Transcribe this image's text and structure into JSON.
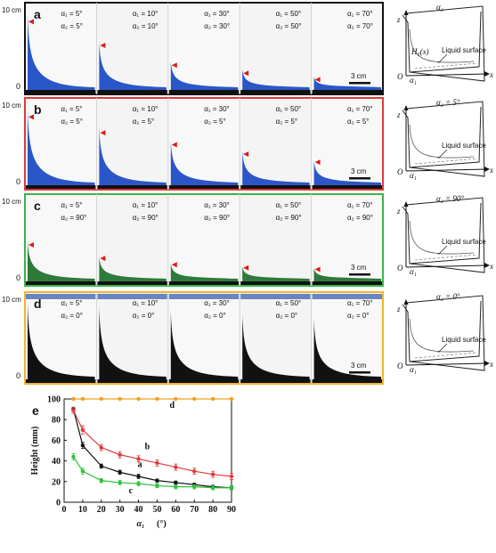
{
  "rows": [
    {
      "label": "a",
      "frame_color": "#111111",
      "top_scale": "10 cm",
      "zero": "0",
      "scale_bar": "3 cm",
      "fluid_color": "#2a56c8",
      "has_markers": true,
      "panels": [
        {
          "a1": "α₁ = 5°",
          "a2": "α₂ = 5°",
          "marker": 0.85,
          "rise": 0.95
        },
        {
          "a1": "α₁ = 10°",
          "a2": "α₂ = 10°",
          "marker": 0.55,
          "rise": 0.6
        },
        {
          "a1": "α₁ = 30°",
          "a2": "α₂ = 30°",
          "marker": 0.3,
          "rise": 0.35
        },
        {
          "a1": "α₁ = 50°",
          "a2": "α₂ = 50°",
          "marker": 0.2,
          "rise": 0.25
        },
        {
          "a1": "α₁ = 70°",
          "a2": "α₂ = 70°",
          "marker": 0.12,
          "rise": 0.16
        }
      ],
      "schematic": {
        "alpha2_label": "α₂",
        "extra_label": "H₀(x)",
        "surface_label": "Liquid surface",
        "alpha1_label": "α₁",
        "z": "z",
        "x": "x",
        "o": "O"
      }
    },
    {
      "label": "b",
      "frame_color": "#e03a3a",
      "top_scale": "10 cm",
      "zero": "0",
      "scale_bar": "3 cm",
      "fluid_color": "#2a56c8",
      "has_markers": true,
      "panels": [
        {
          "a1": "α₁ = 5°",
          "a2": "α₂ = 5°",
          "marker": 0.85,
          "rise": 0.95
        },
        {
          "a1": "α₁ = 10°",
          "a2": "α₂ = 5°",
          "marker": 0.65,
          "rise": 0.72
        },
        {
          "a1": "α₁ = 30°",
          "a2": "α₂ = 5°",
          "marker": 0.5,
          "rise": 0.55
        },
        {
          "a1": "α₁ = 50°",
          "a2": "α₂ = 5°",
          "marker": 0.38,
          "rise": 0.42
        },
        {
          "a1": "α₁ = 70°",
          "a2": "α₂ = 5°",
          "marker": 0.28,
          "rise": 0.3
        }
      ],
      "schematic": {
        "alpha2_label": "α₂ = 5°",
        "extra_label": "",
        "surface_label": "Liquid surface",
        "alpha1_label": "α₁",
        "z": "z",
        "x": "x",
        "o": "O"
      }
    },
    {
      "label": "c",
      "frame_color": "#3cb44b",
      "top_scale": "10 cm",
      "zero": "0",
      "scale_bar": "3 cm",
      "fluid_color": "#2e7a3a",
      "has_markers": true,
      "panels": [
        {
          "a1": "α₁ = 5°",
          "a2": "α₂ = 90°",
          "marker": 0.45,
          "rise": 0.5
        },
        {
          "a1": "α₁ = 10°",
          "a2": "α₂ = 90°",
          "marker": 0.28,
          "rise": 0.3
        },
        {
          "a1": "α₁ = 30°",
          "a2": "α₂ = 90°",
          "marker": 0.2,
          "rise": 0.22
        },
        {
          "a1": "α₁ = 50°",
          "a2": "α₂ = 90°",
          "marker": 0.16,
          "rise": 0.18
        },
        {
          "a1": "α₁ = 70°",
          "a2": "α₂ = 90°",
          "marker": 0.14,
          "rise": 0.16
        }
      ],
      "schematic": {
        "alpha2_label": "α₂ = 90°",
        "extra_label": "",
        "surface_label": "Liquid surface",
        "alpha1_label": "α₁",
        "z": "z",
        "x": "x",
        "o": "O"
      }
    },
    {
      "label": "d",
      "frame_color": "#f0b530",
      "top_scale": "10 cm",
      "zero": "0",
      "scale_bar": "3 cm",
      "fluid_color": "#111111",
      "has_markers": false,
      "panels": [
        {
          "a1": "α₁ = 5°",
          "a2": "α₂ = 0°",
          "marker": 0,
          "rise": 0.95
        },
        {
          "a1": "α₁ = 10°",
          "a2": "α₂ = 0°",
          "marker": 0,
          "rise": 0.9
        },
        {
          "a1": "α₁ = 30°",
          "a2": "α₂ = 0°",
          "marker": 0,
          "rise": 0.85
        },
        {
          "a1": "α₁ = 50°",
          "a2": "α₂ = 0°",
          "marker": 0,
          "rise": 0.8
        },
        {
          "a1": "α₁ = 70°",
          "a2": "α₂ = 0°",
          "marker": 0,
          "rise": 0.75
        }
      ],
      "schematic": {
        "alpha2_label": "α₂ = 0°",
        "extra_label": "",
        "surface_label": "Liquid surface",
        "alpha1_label": "α₁",
        "z": "z",
        "x": "x",
        "o": "O"
      }
    }
  ],
  "chart_data": {
    "type": "line",
    "panel_label": "e",
    "xlabel": "α₁",
    "xlabel_unit": "(°)",
    "ylabel": "Height (mm)",
    "xlim": [
      0,
      90
    ],
    "ylim": [
      0,
      100
    ],
    "xticks": [
      0,
      10,
      20,
      30,
      40,
      50,
      60,
      70,
      80,
      90
    ],
    "yticks": [
      0,
      20,
      40,
      60,
      80,
      100
    ],
    "series": [
      {
        "name": "a",
        "color": "#111111",
        "x": [
          5,
          10,
          20,
          30,
          40,
          50,
          60,
          70,
          80,
          90
        ],
        "y": [
          90,
          55,
          35,
          29,
          25,
          21,
          19,
          17,
          15,
          14
        ],
        "err": [
          2,
          3,
          2,
          2,
          2,
          1.5,
          1.5,
          1.5,
          1.5,
          1.5
        ]
      },
      {
        "name": "b",
        "color": "#e03a3a",
        "x": [
          5,
          10,
          20,
          30,
          40,
          50,
          60,
          70,
          80,
          90
        ],
        "y": [
          89,
          70,
          53,
          46,
          42,
          38,
          34,
          30,
          27,
          25
        ],
        "err": [
          3,
          4,
          3,
          3,
          3,
          3,
          3,
          3,
          3,
          3
        ]
      },
      {
        "name": "c",
        "color": "#2ec23a",
        "x": [
          5,
          10,
          20,
          30,
          40,
          50,
          60,
          70,
          80,
          90
        ],
        "y": [
          44,
          30,
          21,
          19,
          18,
          16,
          15,
          15,
          14,
          14
        ],
        "err": [
          3,
          3,
          2,
          2,
          2,
          2,
          2,
          2,
          2,
          2
        ]
      },
      {
        "name": "d",
        "color": "#f0a020",
        "x": [
          5,
          10,
          20,
          30,
          40,
          50,
          60,
          70,
          80,
          90
        ],
        "y": [
          100,
          100,
          100,
          100,
          100,
          100,
          100,
          100,
          100,
          100
        ],
        "err": [
          0,
          0,
          0,
          0,
          0,
          0,
          0,
          0,
          0,
          0
        ]
      }
    ]
  }
}
